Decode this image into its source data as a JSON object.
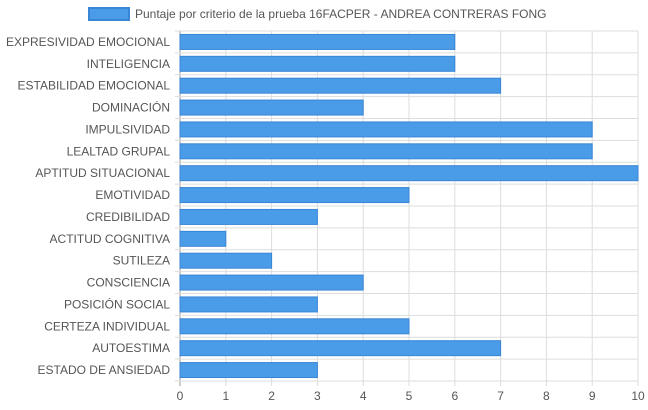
{
  "chart_data": {
    "type": "bar",
    "orientation": "horizontal",
    "categories": [
      "EXPRESIVIDAD EMOCIONAL",
      "INTELIGENCIA",
      "ESTABILIDAD EMOCIONAL",
      "DOMINACIÓN",
      "IMPULSIVIDAD",
      "LEALTAD GRUPAL",
      "APTITUD SITUACIONAL",
      "EMOTIVIDAD",
      "CREDIBILIDAD",
      "ACTITUD COGNITIVA",
      "SUTILEZA",
      "CONSCIENCIA",
      "POSICIÓN SOCIAL",
      "CERTEZA INDIVIDUAL",
      "AUTOESTIMA",
      "ESTADO DE ANSIEDAD"
    ],
    "series": [
      {
        "name": "Puntaje por criterio de la prueba 16FACPER - ANDREA CONTRERAS FONG",
        "values": [
          6,
          6,
          7,
          4,
          9,
          9,
          10,
          5,
          3,
          1,
          2,
          4,
          3,
          5,
          7,
          3
        ]
      }
    ],
    "xlim": [
      0,
      10
    ],
    "xticks": [
      "0",
      "1",
      "2",
      "3",
      "4",
      "5",
      "6",
      "7",
      "8",
      "9",
      "10"
    ],
    "grid": true,
    "legend": "top-center",
    "colors": {
      "bar_fill": "#4a9be8",
      "bar_stroke": "#3a86d6",
      "grid": "#dddddd",
      "axis_text": "#555555"
    }
  }
}
